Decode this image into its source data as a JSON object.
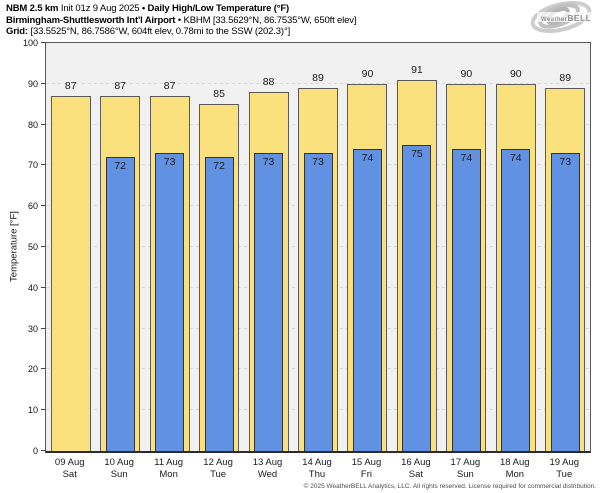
{
  "header": {
    "line1": {
      "model": "NBM 2.5 km",
      "init": "Init 01z 9 Aug 2025",
      "sep": "•",
      "title": "Daily High/Low Temperature (°F)"
    },
    "line2": {
      "station": "Birmingham-Shuttlesworth Int'l Airport",
      "sep": "•",
      "station_meta": "KBHM [33.5629°N, 86.7535°W, 650ft elev]"
    },
    "line3": {
      "label": "Grid:",
      "value": "[33.5525°N, 86.7586°W, 604ft elev, 0.78mi to the SSW (202.3)°]"
    }
  },
  "logo": {
    "brand_a": "Weather",
    "brand_b": "BELL"
  },
  "chart_data": {
    "type": "bar",
    "title": "Daily High/Low Temperature (°F)",
    "ylabel": "Temperature [°F]",
    "ylim": [
      0,
      100
    ],
    "ytick_step": 10,
    "grid": "horizontal-dashed-every-10",
    "legend": "none",
    "categories": [
      {
        "date": "09 Aug",
        "day": "Sat"
      },
      {
        "date": "10 Aug",
        "day": "Sun"
      },
      {
        "date": "11 Aug",
        "day": "Mon"
      },
      {
        "date": "12 Aug",
        "day": "Tue"
      },
      {
        "date": "13 Aug",
        "day": "Wed"
      },
      {
        "date": "14 Aug",
        "day": "Thu"
      },
      {
        "date": "15 Aug",
        "day": "Fri"
      },
      {
        "date": "16 Aug",
        "day": "Sat"
      },
      {
        "date": "17 Aug",
        "day": "Sun"
      },
      {
        "date": "18 Aug",
        "day": "Mon"
      },
      {
        "date": "19 Aug",
        "day": "Tue"
      }
    ],
    "series": [
      {
        "name": "Daily High",
        "color": "#FBE07E",
        "values": [
          87,
          87,
          87,
          85,
          88,
          89,
          90,
          91,
          90,
          90,
          89
        ]
      },
      {
        "name": "Daily Low",
        "color": "#6191E3",
        "values": [
          null,
          72,
          73,
          72,
          73,
          73,
          74,
          75,
          74,
          74,
          73
        ]
      }
    ]
  },
  "footer": {
    "copyright": "© 2025 WeatherBELL Analytics, LLC. All rights reserved. License required for commercial distribution."
  },
  "colors": {
    "plot_bg": "#F1F1F1",
    "grid": "#D9D9D9",
    "high_fill": "#FBE07E",
    "high_border": "#5A5A5A",
    "low_fill": "#6191E3",
    "low_border": "#333333"
  }
}
